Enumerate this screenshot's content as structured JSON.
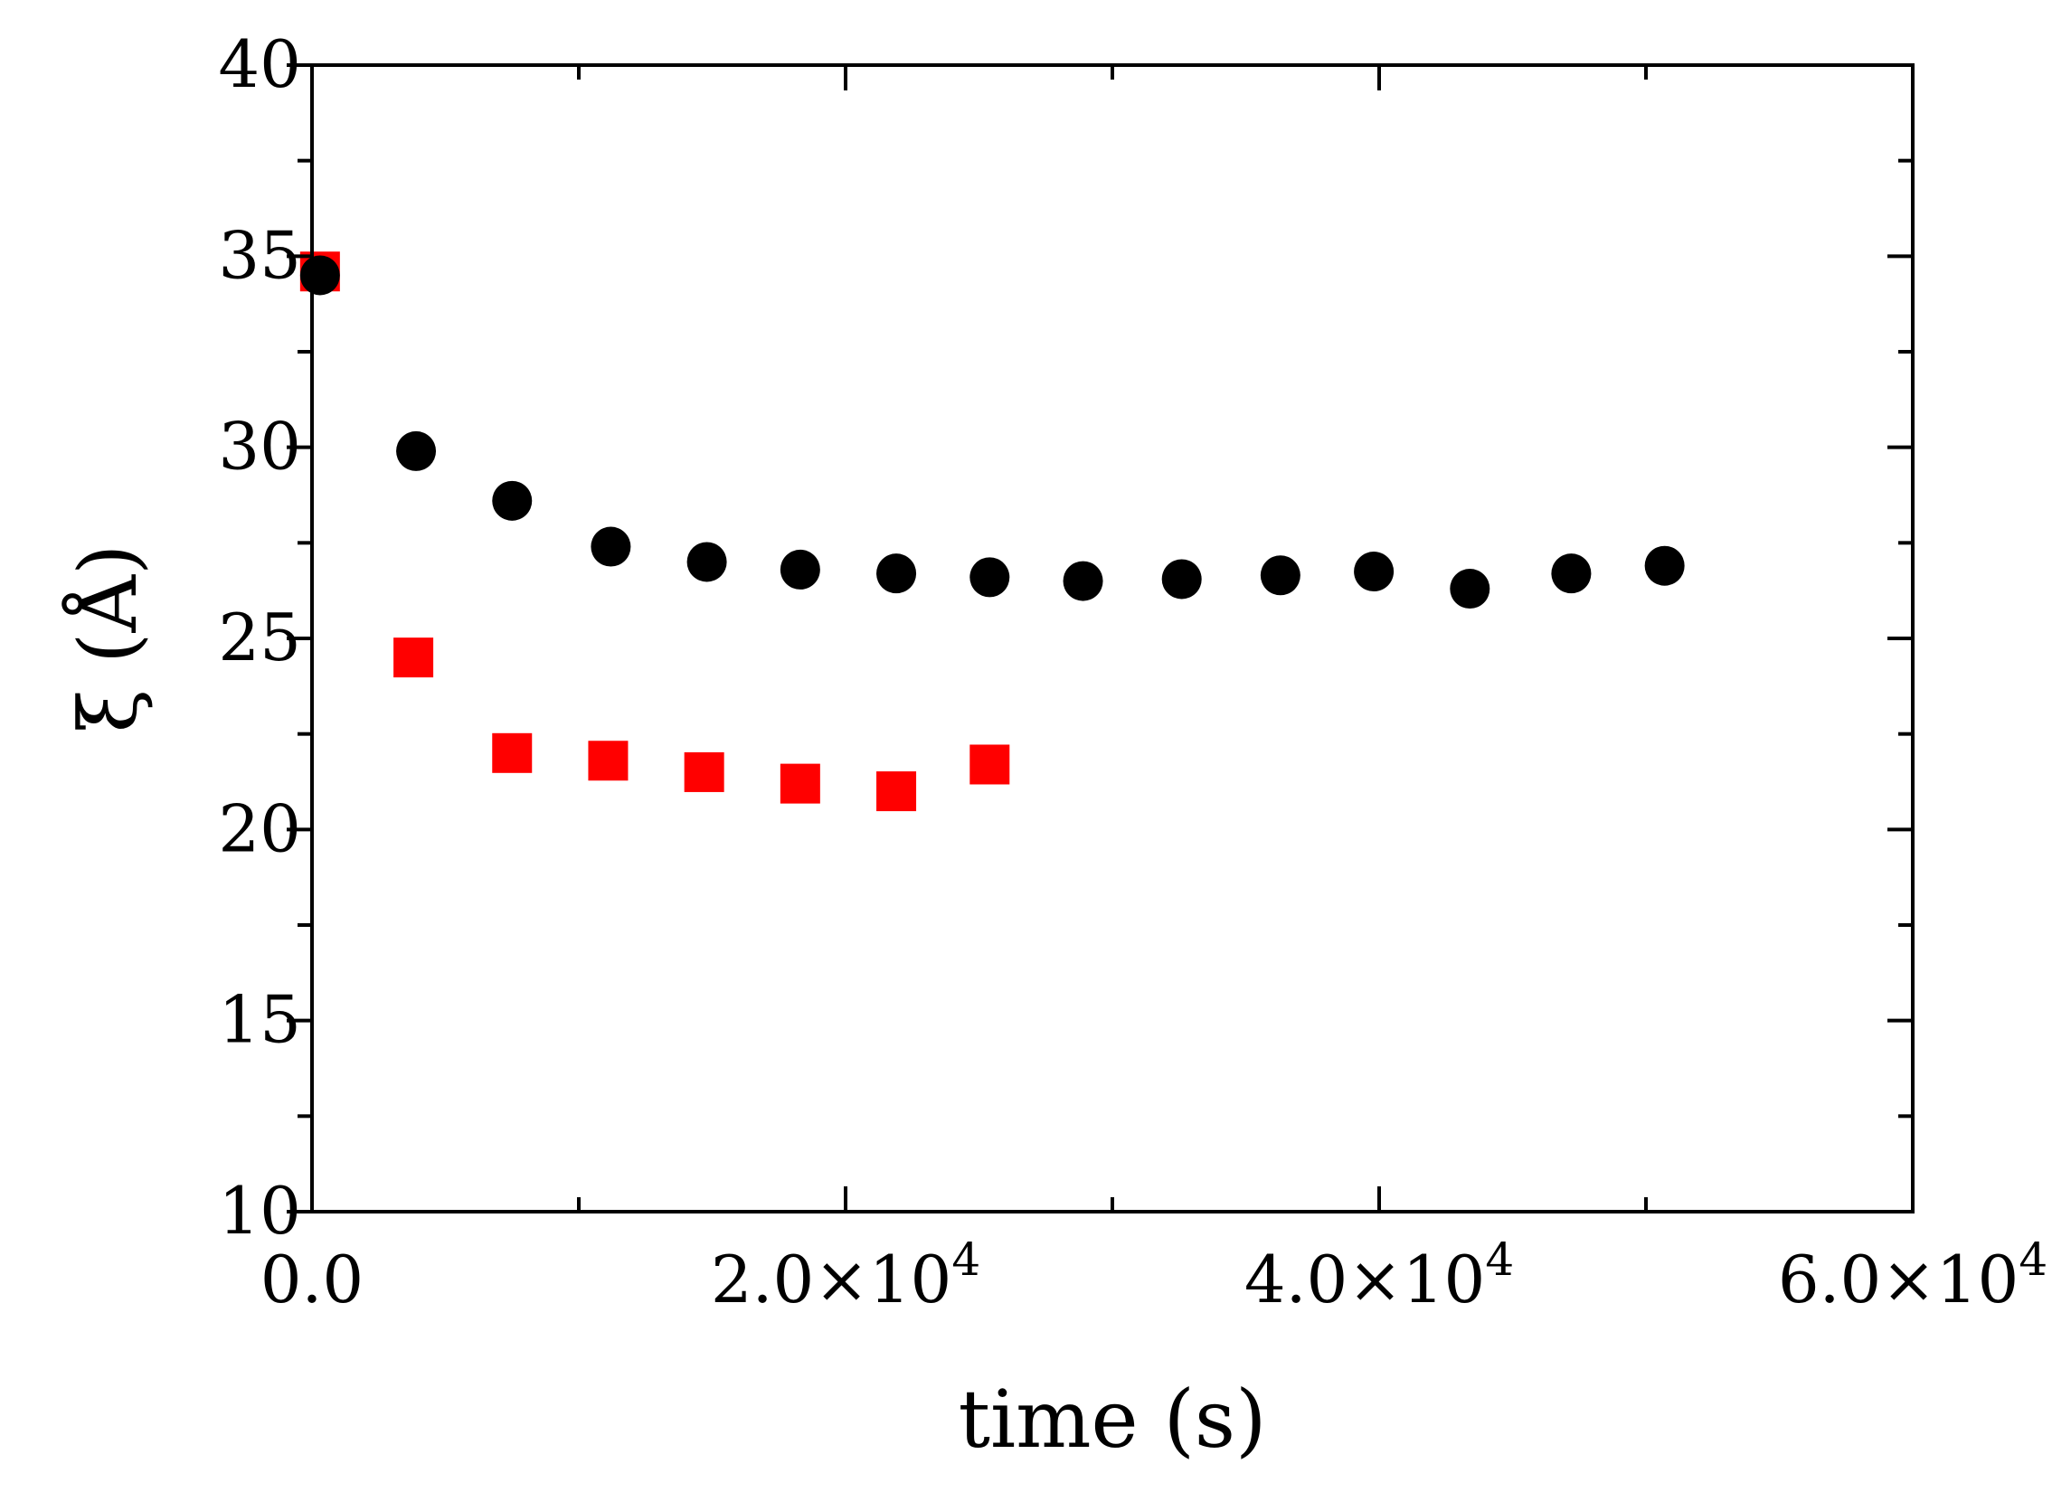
{
  "chart_data": {
    "type": "scatter",
    "title": "",
    "xlabel": "time (s)",
    "ylabel": "ξ (Å)",
    "xlim": [
      0,
      60000
    ],
    "ylim": [
      10,
      40
    ],
    "grid": false,
    "x_ticks": [
      {
        "value": 0,
        "label": "0.0",
        "exp": ""
      },
      {
        "value": 20000,
        "label": "2.0×10",
        "exp": "4"
      },
      {
        "value": 40000,
        "label": "4.0×10",
        "exp": "4"
      },
      {
        "value": 60000,
        "label": "6.0×10",
        "exp": "4"
      }
    ],
    "y_ticks": [
      {
        "value": 10,
        "label": "10"
      },
      {
        "value": 15,
        "label": "15"
      },
      {
        "value": 20,
        "label": "20"
      },
      {
        "value": 25,
        "label": "25"
      },
      {
        "value": 30,
        "label": "30"
      },
      {
        "value": 35,
        "label": "35"
      },
      {
        "value": 40,
        "label": "40"
      }
    ],
    "series": [
      {
        "name": "black circles",
        "marker": "circle",
        "color": "#000000",
        "x": [
          300,
          3900,
          7500,
          11200,
          14800,
          18300,
          21900,
          25400,
          28900,
          32600,
          36300,
          39800,
          43400,
          47200,
          50700
        ],
        "y": [
          34.5,
          29.9,
          28.6,
          27.4,
          27.0,
          26.8,
          26.7,
          26.6,
          26.5,
          26.55,
          26.65,
          26.75,
          26.3,
          26.7,
          26.9
        ]
      },
      {
        "name": "red squares",
        "marker": "square",
        "color": "#ff0000",
        "x": [
          300,
          3800,
          7500,
          11100,
          14700,
          18300,
          21900,
          25400
        ],
        "y": [
          34.6,
          24.5,
          22.0,
          21.8,
          21.5,
          21.2,
          21.0,
          21.7
        ]
      }
    ]
  }
}
